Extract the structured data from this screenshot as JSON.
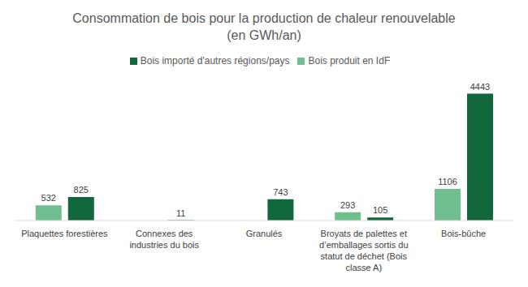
{
  "chart_data": {
    "type": "bar",
    "title": "Consommation de bois pour la production de chaleur renouvelable\n(en GWh/an)",
    "categories": [
      "Plaquettes forestières",
      "Connexes des industries du bois",
      "Granulés",
      "Broyats de palettes et d’emballages sortis du statut de déchet (Bois classe A)",
      "Bois-bûche"
    ],
    "series": [
      {
        "name": "Bois produit en IdF",
        "color": "#70bf8f",
        "values": [
          532,
          0,
          0,
          293,
          1106
        ]
      },
      {
        "name": "Bois importé d'autres régions/pays",
        "color": "#10683c",
        "values": [
          825,
          11,
          743,
          105,
          4443
        ]
      }
    ],
    "ylim": [
      0,
      5000
    ],
    "grid": false,
    "legend": "top",
    "data_labels": true,
    "tick_labels": "x"
  }
}
